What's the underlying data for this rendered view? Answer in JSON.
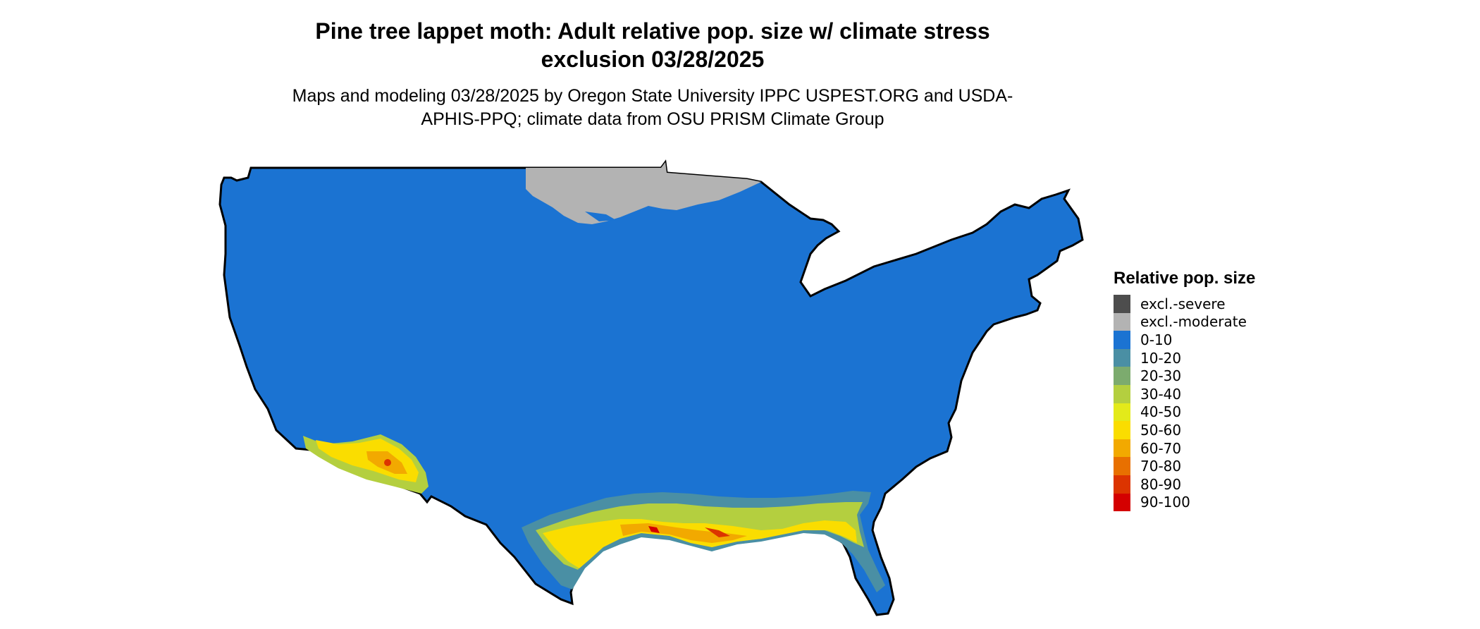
{
  "title": "Pine tree lappet moth: Adult relative pop. size w/ climate stress exclusion 03/28/2025",
  "subtitle": "Maps and modeling 03/28/2025 by Oregon State University IPPC USPEST.ORG and USDA-APHIS-PPQ; climate data from OSU PRISM Climate Group",
  "legend": {
    "title": "Relative pop. size",
    "items": [
      {
        "label": "excl.-severe",
        "color": "#4d4d4d"
      },
      {
        "label": "excl.-moderate",
        "color": "#b3b3b3"
      },
      {
        "label": "0-10",
        "color": "#1b73d2"
      },
      {
        "label": "10-20",
        "color": "#4a8fa4"
      },
      {
        "label": "20-30",
        "color": "#7cab6e"
      },
      {
        "label": "30-40",
        "color": "#b4cf3f"
      },
      {
        "label": "40-50",
        "color": "#e3ea1a"
      },
      {
        "label": "50-60",
        "color": "#fadd00"
      },
      {
        "label": "60-70",
        "color": "#f2a900"
      },
      {
        "label": "70-80",
        "color": "#e87000"
      },
      {
        "label": "80-90",
        "color": "#dc3400"
      },
      {
        "label": "90-100",
        "color": "#d40000"
      }
    ]
  },
  "colors": {
    "base": "#1b73d2",
    "excluded_moderate": "#b3b3b3",
    "state_border": "#000000"
  }
}
